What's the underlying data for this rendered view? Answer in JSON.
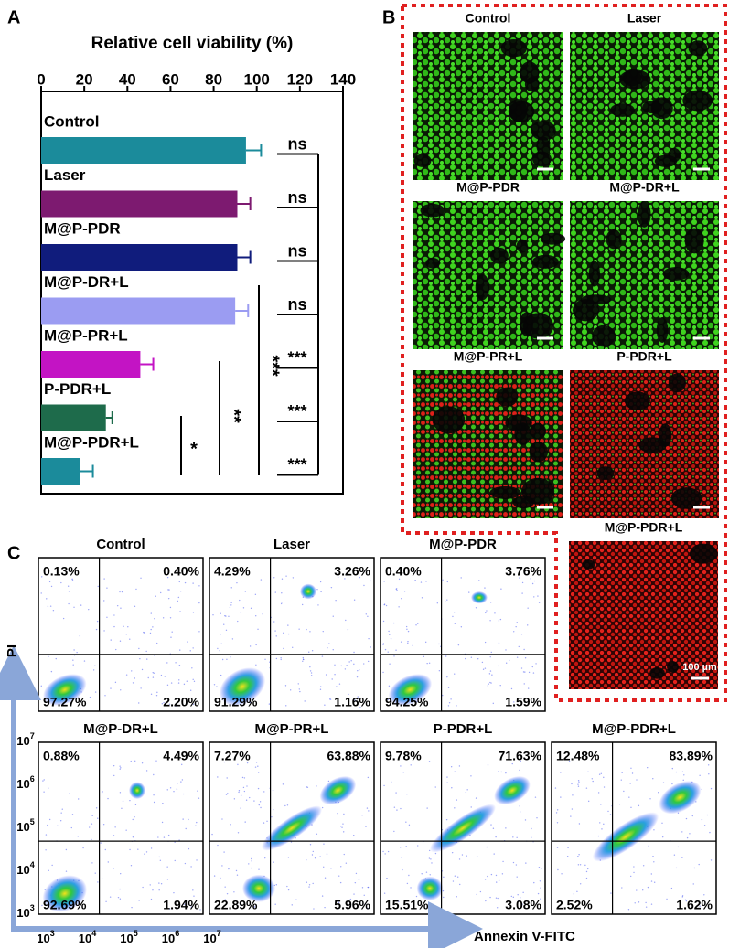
{
  "panel_labels": [
    "A",
    "B",
    "C"
  ],
  "chart_data": {
    "type": "bar",
    "orientation": "horizontal",
    "title": "Relative cell viability (%)",
    "categories": [
      "Control",
      "Laser",
      "M@P-PDR",
      "M@P-DR+L",
      "M@P-PR+L",
      "P-PDR+L",
      "M@P-PDR+L"
    ],
    "values": [
      95,
      91,
      91,
      90,
      46,
      30,
      18
    ],
    "errors": [
      7,
      6,
      6,
      6,
      6,
      3,
      6
    ],
    "colors": [
      "#1b8b9b",
      "#7d1a70",
      "#101c7c",
      "#9b9cf2",
      "#c314c4",
      "#1e6b4b",
      "#1b8b9b"
    ],
    "xlim": [
      0,
      140
    ],
    "xticks": [
      0,
      20,
      40,
      60,
      80,
      100,
      120,
      140
    ],
    "significance": [
      "ns",
      "ns",
      "ns",
      "ns",
      "***",
      "***",
      "***"
    ],
    "comparisons": [
      "*",
      "**",
      "***"
    ]
  },
  "images": {
    "titles": [
      "Control",
      "Laser",
      "M@P-PDR",
      "M@P-DR+L",
      "M@P-PR+L",
      "P-PDR+L",
      "M@P-PDR+L"
    ],
    "scale_bar": "100 µm"
  },
  "flow": {
    "y_label": "PI",
    "x_label": "Annexin V-FITC",
    "axis_ticks": [
      {
        "base": "10",
        "exponent": "3"
      },
      {
        "base": "10",
        "exponent": "4"
      },
      {
        "base": "10",
        "exponent": "5"
      },
      {
        "base": "10",
        "exponent": "6"
      },
      {
        "base": "10",
        "exponent": "7"
      }
    ],
    "plots": [
      {
        "title": "Control",
        "quadrants": [
          "0.13%",
          "0.40%",
          "97.27%",
          "2.20%"
        ]
      },
      {
        "title": "Laser",
        "quadrants": [
          "4.29%",
          "3.26%",
          "91.29%",
          "1.16%"
        ]
      },
      {
        "title": "M@P-PDR",
        "quadrants": [
          "0.40%",
          "3.76%",
          "94.25%",
          "1.59%"
        ]
      },
      {
        "title": "M@P-DR+L",
        "quadrants": [
          "0.88%",
          "4.49%",
          "92.69%",
          "1.94%"
        ]
      },
      {
        "title": "M@P-PR+L",
        "quadrants": [
          "7.27%",
          "63.88%",
          "22.89%",
          "5.96%"
        ]
      },
      {
        "title": "P-PDR+L",
        "quadrants": [
          "9.78%",
          "71.63%",
          "15.51%",
          "3.08%"
        ]
      },
      {
        "title": "M@P-PDR+L",
        "quadrants": [
          "12.48%",
          "83.89%",
          "2.52%",
          "1.62%"
        ]
      }
    ]
  }
}
